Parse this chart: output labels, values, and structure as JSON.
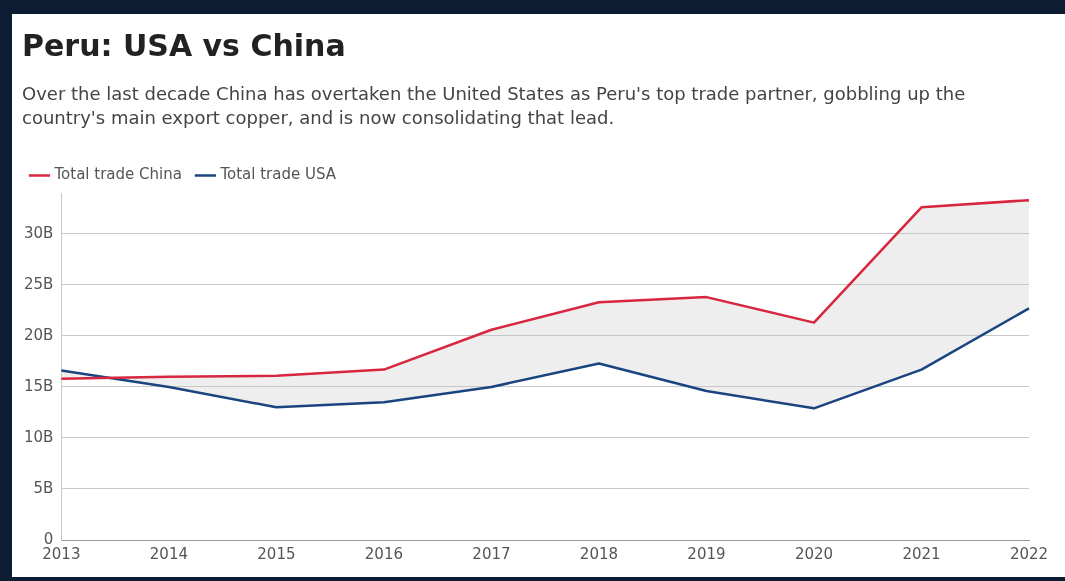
{
  "chart_data": {
    "type": "line",
    "title": "Peru: USA vs China",
    "subtitle": "Over the last decade China has overtaken the United States as Peru's top trade partner, gobbling up the country's main export copper, and is now consolidating that lead.",
    "categories": [
      "2013",
      "2014",
      "2015",
      "2016",
      "2017",
      "2018",
      "2019",
      "2020",
      "2021",
      "2022"
    ],
    "series": [
      {
        "name": "Total trade China",
        "color": "#d7263d",
        "values": [
          15.8,
          16.0,
          16.1,
          16.7,
          20.6,
          23.3,
          23.8,
          21.3,
          32.6,
          33.3
        ],
        "lower": [
          16.6,
          15.0,
          13.0,
          13.5,
          15.0,
          17.3,
          14.6,
          12.9,
          16.7,
          22.7
        ],
        "upper": [
          15.8,
          16.0,
          16.1,
          16.7,
          20.6,
          23.3,
          23.8,
          21.3,
          32.6,
          33.3
        ]
      },
      {
        "name": "Total trade USA",
        "color": "#1a4480",
        "values": [
          16.6,
          15.0,
          13.0,
          13.5,
          15.0,
          17.3,
          14.6,
          12.9,
          16.7,
          22.7
        ]
      }
    ],
    "ylim": [
      0,
      34
    ],
    "yticks": [
      {
        "value": 0,
        "label": "0"
      },
      {
        "value": 5,
        "label": "5B"
      },
      {
        "value": 10,
        "label": "10B"
      },
      {
        "value": 15,
        "label": "15B"
      },
      {
        "value": 20,
        "label": "20B"
      },
      {
        "value": 25,
        "label": "25B"
      },
      {
        "value": 30,
        "label": "30B"
      }
    ],
    "grid": "y",
    "legend": "top left",
    "marker": "none",
    "line_style": "solid"
  }
}
